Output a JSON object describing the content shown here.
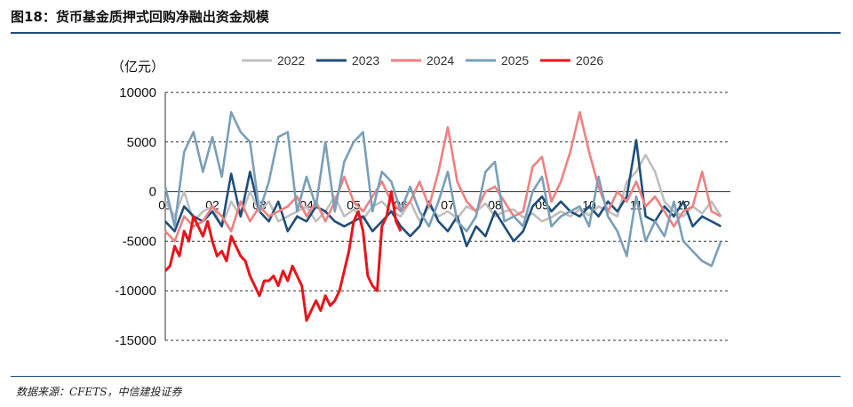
{
  "header": {
    "title": "图18：货币基金质押式回购净融出资金规模"
  },
  "footer": {
    "source": "数据来源：CFETS，中信建投证券"
  },
  "colors": {
    "rule": "#1f4e79"
  },
  "chart_data": {
    "type": "line",
    "unit_label": "（亿元）",
    "ylim": [
      -15000,
      10000
    ],
    "yticks": [
      10000,
      5000,
      0,
      -5000,
      -10000,
      -15000
    ],
    "ytick_labels": [
      "10000",
      "5000",
      "0",
      "-5000",
      "-10000",
      "-15000"
    ],
    "xlim": [
      1,
      13
    ],
    "x_axis_at": 0,
    "xticks": [
      1,
      2,
      3,
      4,
      5,
      6,
      7,
      8,
      9,
      10,
      11,
      12
    ],
    "xtick_labels": [
      "01",
      "02",
      "03",
      "04",
      "05",
      "06",
      "07",
      "08",
      "09",
      "10",
      "11",
      "12"
    ],
    "grid": "horizontal-dashed",
    "legend_position": "top",
    "series": [
      {
        "name": "2022",
        "color": "#bfbfbf",
        "x": [
          1.0,
          1.2,
          1.4,
          1.6,
          1.8,
          2.0,
          2.2,
          2.4,
          2.6,
          2.8,
          3.0,
          3.2,
          3.4,
          3.6,
          3.8,
          4.0,
          4.2,
          4.4,
          4.6,
          4.8,
          5.0,
          5.2,
          5.4,
          5.6,
          5.8,
          6.0,
          6.2,
          6.4,
          6.6,
          6.8,
          7.0,
          7.2,
          7.4,
          7.6,
          7.8,
          8.0,
          8.2,
          8.4,
          8.6,
          8.8,
          9.0,
          9.2,
          9.4,
          9.6,
          9.8,
          10.0,
          10.2,
          10.4,
          10.6,
          10.8,
          11.0,
          11.2,
          11.4,
          11.6,
          11.8,
          12.0,
          12.2,
          12.4,
          12.6,
          12.8
        ],
        "values": [
          -1000,
          -2500,
          0,
          -3000,
          -2000,
          -1500,
          -3500,
          -1000,
          -2500,
          0,
          -2000,
          -1000,
          -3000,
          -2500,
          -2000,
          -1500,
          -3000,
          -2000,
          -500,
          -2500,
          -1800,
          -2800,
          -1500,
          -1000,
          -2000,
          -2500,
          -1000,
          -3000,
          -1500,
          -2500,
          -2000,
          -2700,
          -1500,
          -2000,
          -1200,
          -2500,
          -2000,
          -1800,
          -2600,
          -2200,
          -3000,
          -2600,
          -2000,
          -2500,
          -1800,
          -2400,
          -1500,
          -2000,
          -2500,
          1000,
          2000,
          3700,
          2000,
          -1000,
          -2000,
          -2500,
          -1500,
          -2200,
          -1000,
          -2500
        ]
      },
      {
        "name": "2023",
        "color": "#1f4e79",
        "x": [
          1.0,
          1.2,
          1.4,
          1.6,
          1.8,
          2.0,
          2.2,
          2.4,
          2.6,
          2.8,
          3.0,
          3.2,
          3.4,
          3.6,
          3.8,
          4.0,
          4.2,
          4.4,
          4.6,
          4.8,
          5.0,
          5.2,
          5.4,
          5.6,
          5.8,
          6.0,
          6.2,
          6.4,
          6.6,
          6.8,
          7.0,
          7.2,
          7.4,
          7.6,
          7.8,
          8.0,
          8.2,
          8.4,
          8.6,
          8.8,
          9.0,
          9.2,
          9.4,
          9.6,
          9.8,
          10.0,
          10.2,
          10.4,
          10.6,
          10.8,
          11.0,
          11.2,
          11.4,
          11.6,
          11.8,
          12.0,
          12.2,
          12.4,
          12.6,
          12.8
        ],
        "values": [
          -3000,
          -4000,
          -1500,
          -2500,
          -3000,
          -2000,
          -3500,
          1800,
          -2500,
          2000,
          -2000,
          -3000,
          -1000,
          -4000,
          -2500,
          -3000,
          -1500,
          -2000,
          -3000,
          -3500,
          -3000,
          -2500,
          -4000,
          -3000,
          -2000,
          -3500,
          -4500,
          -3500,
          -1000,
          -3000,
          -4000,
          -2500,
          -5500,
          -3500,
          -4500,
          -2000,
          -3500,
          -5000,
          -4000,
          -1500,
          -500,
          -2000,
          -1000,
          -2000,
          -2500,
          -1500,
          -2500,
          -1000,
          -2000,
          -500,
          5200,
          -2500,
          -3000,
          -1500,
          -2500,
          -1000,
          -3500,
          -2500,
          -3000,
          -3500
        ]
      },
      {
        "name": "2024",
        "color": "#f08080",
        "x": [
          1.0,
          1.2,
          1.4,
          1.6,
          1.8,
          2.0,
          2.2,
          2.4,
          2.6,
          2.8,
          3.0,
          3.2,
          3.4,
          3.6,
          3.8,
          4.0,
          4.2,
          4.4,
          4.6,
          4.8,
          5.0,
          5.2,
          5.4,
          5.6,
          5.8,
          6.0,
          6.2,
          6.4,
          6.6,
          6.8,
          7.0,
          7.2,
          7.4,
          7.6,
          7.8,
          8.0,
          8.2,
          8.4,
          8.6,
          8.8,
          9.0,
          9.2,
          9.4,
          9.6,
          9.8,
          10.0,
          10.2,
          10.4,
          10.6,
          10.8,
          11.0,
          11.2,
          11.4,
          11.6,
          11.8,
          12.0,
          12.2,
          12.4,
          12.6,
          12.8
        ],
        "values": [
          -4000,
          -5000,
          -2500,
          -3500,
          -3000,
          -1500,
          -2500,
          -4000,
          -1000,
          -3000,
          -1500,
          -2500,
          -2000,
          -1500,
          -500,
          -2500,
          -1000,
          -3000,
          -1000,
          1500,
          -1000,
          -2000,
          -500,
          1000,
          -1000,
          -2000,
          -1000,
          1000,
          -1500,
          2000,
          6500,
          1000,
          -1000,
          -2000,
          0,
          500,
          -1000,
          -2500,
          -2000,
          2500,
          3500,
          -1000,
          1000,
          4000,
          8000,
          4000,
          500,
          -2000,
          0,
          -1000,
          1000,
          -1500,
          -500,
          -2000,
          -3500,
          -2000,
          -1500,
          2000,
          -2000,
          -2500
        ]
      },
      {
        "name": "2025",
        "color": "#7a9fb8",
        "x": [
          1.0,
          1.2,
          1.4,
          1.6,
          1.8,
          2.0,
          2.2,
          2.4,
          2.6,
          2.8,
          3.0,
          3.2,
          3.4,
          3.6,
          3.8,
          4.0,
          4.2,
          4.4,
          4.6,
          4.8,
          5.0,
          5.2,
          5.4,
          5.6,
          5.8,
          6.0,
          6.2,
          6.4,
          6.6,
          6.8,
          7.0,
          7.2,
          7.4,
          7.6,
          7.8,
          8.0,
          8.2,
          8.4,
          8.6,
          8.8,
          9.0,
          9.2,
          9.4,
          9.6,
          9.8,
          10.0,
          10.2,
          10.4,
          10.6,
          10.8,
          11.0,
          11.2,
          11.4,
          11.6,
          11.8,
          12.0,
          12.2,
          12.4,
          12.6,
          12.8
        ],
        "values": [
          500,
          -3500,
          4000,
          6000,
          2000,
          5500,
          1500,
          8000,
          6000,
          5000,
          -2000,
          1000,
          5500,
          6000,
          -2000,
          1500,
          -1500,
          5000,
          -2000,
          3000,
          5000,
          6000,
          -2000,
          2000,
          1000,
          -2000,
          500,
          -2000,
          -3500,
          -1000,
          2000,
          -3000,
          -4000,
          -2500,
          2000,
          3000,
          -3000,
          -2500,
          -3500,
          0,
          1500,
          -3500,
          -2500,
          -2000,
          -1500,
          -3500,
          1500,
          -2500,
          -4000,
          -6500,
          -500,
          -5000,
          -3000,
          -4500,
          -1000,
          -5000,
          -6000,
          -7000,
          -7500,
          -5000
        ]
      },
      {
        "name": "2026",
        "color": "#e8141a",
        "x": [
          1.0,
          1.1,
          1.2,
          1.3,
          1.4,
          1.5,
          1.6,
          1.7,
          1.8,
          1.9,
          2.0,
          2.1,
          2.2,
          2.3,
          2.4,
          2.5,
          2.6,
          2.7,
          2.8,
          2.9,
          3.0,
          3.1,
          3.2,
          3.3,
          3.4,
          3.5,
          3.6,
          3.7,
          3.8,
          3.9,
          4.0,
          4.1,
          4.2,
          4.3,
          4.4,
          4.5,
          4.6,
          4.7,
          4.8,
          4.9,
          5.0,
          5.1,
          5.2,
          5.3,
          5.4,
          5.5,
          5.6,
          5.7,
          5.8,
          5.9,
          6.0
        ],
        "values": [
          -8000,
          -7500,
          -5500,
          -6500,
          -4000,
          -5000,
          -2500,
          -3500,
          -4500,
          -3000,
          -5000,
          -6500,
          -6000,
          -7000,
          -4500,
          -5500,
          -6500,
          -7000,
          -8500,
          -9500,
          -10500,
          -9000,
          -9000,
          -8500,
          -9500,
          -8000,
          -9000,
          -7500,
          -8500,
          -9500,
          -13000,
          -12000,
          -11000,
          -12000,
          -10500,
          -11500,
          -11000,
          -10000,
          -8000,
          -6000,
          -3000,
          -2000,
          -4000,
          -8500,
          -9500,
          -10000,
          -3500,
          -2500,
          0,
          -3000,
          -4000
        ]
      }
    ]
  }
}
